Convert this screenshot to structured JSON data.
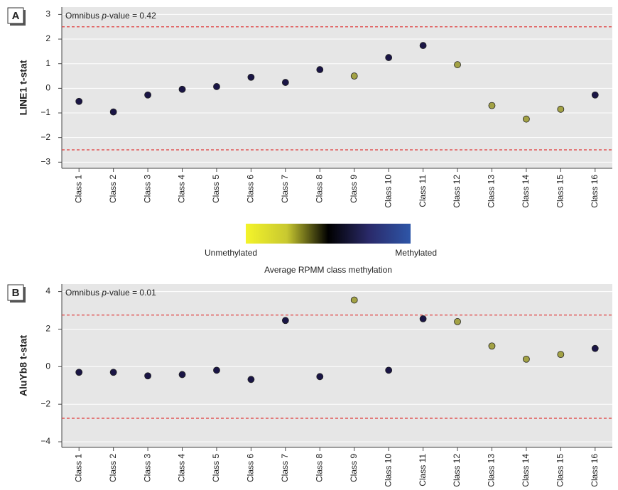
{
  "chart_data": [
    {
      "type": "scatter",
      "panel": "A",
      "y_label": "LINE1 t-stat",
      "annotation": {
        "prefix": "Omnibus ",
        "italic": "p",
        "suffix": "-value = 0.42"
      },
      "categories": [
        "Class 1",
        "Class 2",
        "Class 3",
        "Class 4",
        "Class 5",
        "Class 6",
        "Class 7",
        "Class 8",
        "Class 9",
        "Class 10",
        "Class 11",
        "Class 12",
        "Class 13",
        "Class 14",
        "Class 15",
        "Class 16"
      ],
      "values": [
        -0.53,
        -0.96,
        -0.27,
        -0.04,
        0.07,
        0.45,
        0.24,
        0.76,
        0.5,
        1.25,
        1.74,
        0.96,
        -0.7,
        -1.25,
        -0.85,
        -0.27
      ],
      "point_colors": [
        "#1a1545",
        "#1a1545",
        "#1a1545",
        "#1a1545",
        "#1a1545",
        "#1a1545",
        "#1a1545",
        "#1a1545",
        "#a3a245",
        "#1a1545",
        "#1a1545",
        "#a3a245",
        "#a3a245",
        "#a3a245",
        "#a3a245",
        "#1a1545"
      ],
      "ylim": [
        -3.25,
        3.3
      ],
      "yticks": [
        {
          "value": 3,
          "label": "3"
        },
        {
          "value": 2,
          "label": "2"
        },
        {
          "value": 1,
          "label": "1"
        },
        0,
        {
          "value": -1,
          "label": "−1"
        },
        {
          "value": -2,
          "label": "−2"
        },
        {
          "value": -3,
          "label": "−3"
        }
      ],
      "ref_lines": [
        2.5,
        -2.5
      ],
      "ref_line_color": "#e03a3a",
      "grid": true
    },
    {
      "type": "scatter",
      "panel": "B",
      "y_label": "AluYb8 t-stat",
      "annotation": {
        "prefix": "Omnibus ",
        "italic": "p",
        "suffix": "-value = 0.01"
      },
      "categories": [
        "Class 1",
        "Class 2",
        "Class 3",
        "Class 4",
        "Class 5",
        "Class 6",
        "Class 7",
        "Class 8",
        "Class 9",
        "Class 10",
        "Class 11",
        "Class 12",
        "Class 13",
        "Class 14",
        "Class 15",
        "Class 16"
      ],
      "values": [
        -0.3,
        -0.3,
        -0.49,
        -0.42,
        -0.19,
        -0.68,
        2.46,
        -0.53,
        3.55,
        -0.19,
        2.55,
        2.4,
        1.1,
        0.4,
        0.65,
        0.97
      ],
      "point_colors": [
        "#1a1545",
        "#1a1545",
        "#1a1545",
        "#1a1545",
        "#1a1545",
        "#1a1545",
        "#1a1545",
        "#1a1545",
        "#a3a245",
        "#1a1545",
        "#1a1545",
        "#a3a245",
        "#a3a245",
        "#a3a245",
        "#a3a245",
        "#1a1545"
      ],
      "ylim": [
        -4.3,
        4.4
      ],
      "yticks": [
        4,
        2,
        0,
        {
          "value": -2,
          "label": "−2"
        },
        {
          "value": -4,
          "label": "−4"
        }
      ],
      "ref_lines": [
        2.75,
        -2.75
      ],
      "ref_line_color": "#e03a3a",
      "grid": true
    }
  ],
  "colorbar": {
    "left_label": "Unmethylated",
    "right_label": "Methylated",
    "title": "Average RPMM class methylation",
    "colors": [
      "#f4f42a",
      "#c8c830",
      "#000000",
      "#2a2a6a",
      "#2e56a8"
    ]
  }
}
